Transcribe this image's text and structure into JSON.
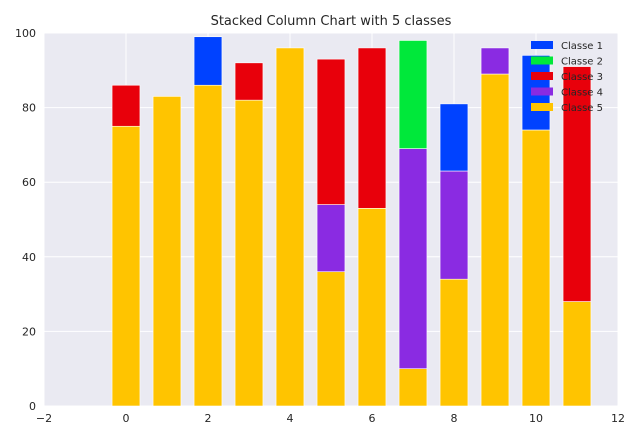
{
  "chart_data": {
    "type": "bar",
    "stacked": true,
    "title": "Stacked Column Chart with 5 classes",
    "xlabel": "",
    "ylabel": "",
    "xlim": [
      -2,
      12
    ],
    "ylim": [
      0,
      100
    ],
    "xticks": [
      "−2",
      "0",
      "2",
      "4",
      "6",
      "8",
      "10",
      "12"
    ],
    "yticks": [
      "0",
      "20",
      "40",
      "60",
      "80",
      "100"
    ],
    "x": [
      0,
      1,
      2,
      3,
      4,
      5,
      6,
      7,
      8,
      9,
      10,
      11
    ],
    "grid": true,
    "legend_position": "top-right",
    "series": [
      {
        "name": "Classe 5",
        "color": "#FFC400",
        "values": [
          75,
          83,
          86,
          82,
          96,
          36,
          53,
          10,
          34,
          89,
          74,
          28
        ]
      },
      {
        "name": "Classe 4",
        "color": "#8A2BE2",
        "values": [
          0,
          0,
          0,
          0,
          0,
          18,
          0,
          59,
          29,
          7,
          0,
          0
        ]
      },
      {
        "name": "Classe 3",
        "color": "#E8000B",
        "values": [
          11,
          0,
          0,
          10,
          0,
          39,
          43,
          0,
          0,
          0,
          0,
          63
        ]
      },
      {
        "name": "Classe 2",
        "color": "#00E83A",
        "values": [
          0,
          0,
          0,
          0,
          0,
          0,
          0,
          29,
          0,
          0,
          0,
          0
        ]
      },
      {
        "name": "Classe 1",
        "color": "#0042FF",
        "values": [
          0,
          0,
          13,
          0,
          0,
          0,
          0,
          0,
          18,
          0,
          20,
          0
        ]
      }
    ],
    "legend_order": [
      "Classe 1",
      "Classe 2",
      "Classe 3",
      "Classe 4",
      "Classe 5"
    ]
  }
}
